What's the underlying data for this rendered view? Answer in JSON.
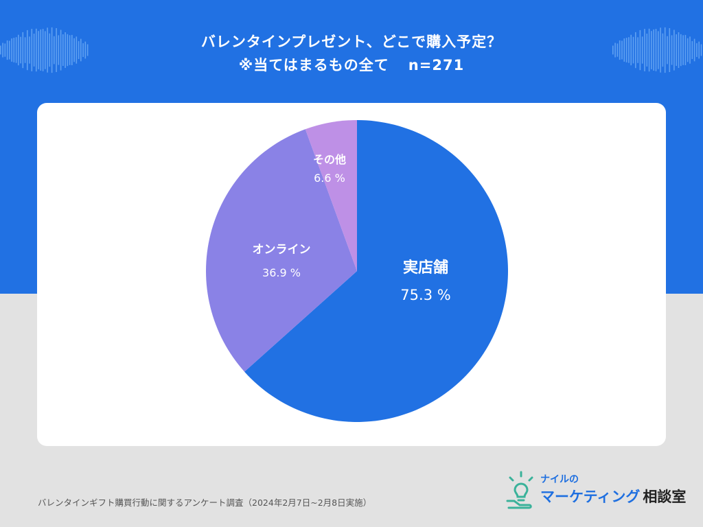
{
  "title": {
    "line1": "バレンタインプレゼント、どこで購入予定？",
    "line2": "※当てはまるもの全て",
    "sample": "n=271"
  },
  "colors": {
    "band": "#2171e3",
    "background": "#e2e2e2"
  },
  "chart_data": {
    "type": "pie",
    "title": "バレンタインプレゼント、どこで購入予定？ ※当てはまるもの全て n=271",
    "slices": [
      {
        "label": "実店舗",
        "value": 75.3,
        "value_label": "75.3 %",
        "color": "#2171e3",
        "label_color": "#ffffff"
      },
      {
        "label": "オンライン",
        "value": 36.9,
        "value_label": "36.9 %",
        "color": "#8a82e6",
        "label_color": "#ffffff"
      },
      {
        "label": "その他",
        "value": 6.6,
        "value_label": "6.6 %",
        "color": "#be90e6",
        "label_color": "#ffffff"
      }
    ]
  },
  "footer": {
    "note": "バレンタインギフト購買行動に関するアンケート調査（2024年2月7日~2月8日実施）"
  },
  "logo": {
    "sub": "ナイルの",
    "main": "マーケティング",
    "main_suffix": "相談室",
    "icon": "lightbulb-hand-icon"
  }
}
